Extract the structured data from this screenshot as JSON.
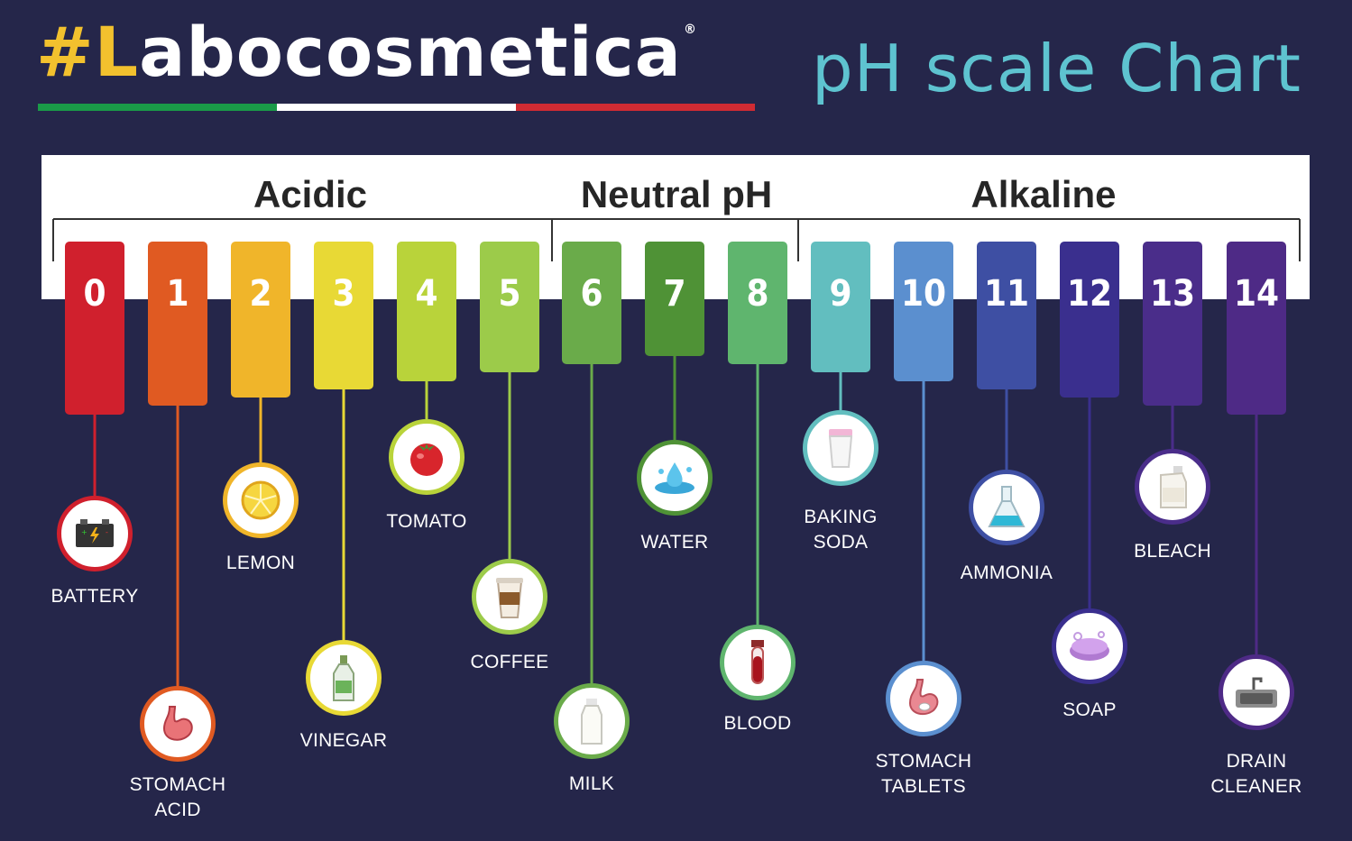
{
  "brand": {
    "hash": "#L",
    "rest": "abocosmetica",
    "registered": "®"
  },
  "title": "pH scale Chart",
  "colors": {
    "background": "#25264a",
    "title": "#5ec3d0",
    "brand_accent": "#f2c12e",
    "flag": [
      "#1a9a48",
      "#ffffff",
      "#d02b33"
    ]
  },
  "groups": [
    {
      "label": "Acidic"
    },
    {
      "label": "Neutral pH"
    },
    {
      "label": "Alkaline"
    }
  ],
  "scale": [
    {
      "ph": "0",
      "color": "#d0202d",
      "item": "BATTERY",
      "icon": "battery-icon"
    },
    {
      "ph": "1",
      "color": "#e05a22",
      "item": "STOMACH\nACID",
      "icon": "stomach-icon"
    },
    {
      "ph": "2",
      "color": "#f0b52a",
      "item": "LEMON",
      "icon": "lemon-icon"
    },
    {
      "ph": "3",
      "color": "#e8d935",
      "item": "VINEGAR",
      "icon": "vinegar-bottle-icon"
    },
    {
      "ph": "4",
      "color": "#b9d33a",
      "item": "TOMATO",
      "icon": "tomato-icon"
    },
    {
      "ph": "5",
      "color": "#9ccb4a",
      "item": "COFFEE",
      "icon": "coffee-cup-icon"
    },
    {
      "ph": "6",
      "color": "#6aab4a",
      "item": "MILK",
      "icon": "milk-bottle-icon"
    },
    {
      "ph": "7",
      "color": "#4f9236",
      "item": "WATER",
      "icon": "water-splash-icon"
    },
    {
      "ph": "8",
      "color": "#5fb56e",
      "item": "BLOOD",
      "icon": "blood-tube-icon"
    },
    {
      "ph": "9",
      "color": "#62bebf",
      "item": "BAKING\nSODA",
      "icon": "baking-soda-icon"
    },
    {
      "ph": "10",
      "color": "#5b8fcf",
      "item": "STOMACH\nTABLETS",
      "icon": "stomach-tablet-icon"
    },
    {
      "ph": "11",
      "color": "#3e4fa3",
      "item": "AMMONIA",
      "icon": "flask-icon"
    },
    {
      "ph": "12",
      "color": "#3a2f8e",
      "item": "SOAP",
      "icon": "soap-icon"
    },
    {
      "ph": "13",
      "color": "#4a2d8a",
      "item": "BLEACH",
      "icon": "bleach-jug-icon"
    },
    {
      "ph": "14",
      "color": "#4e2a86",
      "item": "DRAIN\nCLEANER",
      "icon": "sink-icon"
    }
  ]
}
